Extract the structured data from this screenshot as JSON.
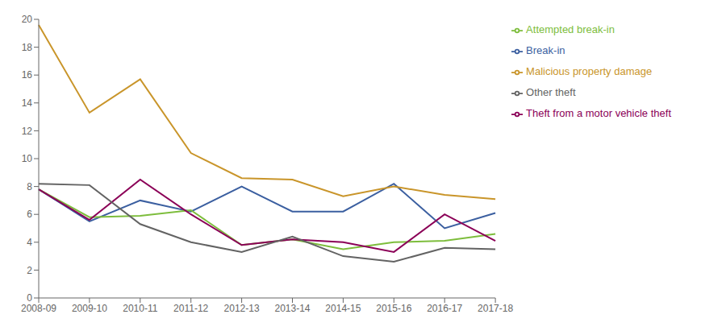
{
  "chart_data": {
    "type": "line",
    "categories": [
      "2008-09",
      "2009-10",
      "2010-11",
      "2011-12",
      "2012-13",
      "2013-14",
      "2014-15",
      "2015-16",
      "2016-17",
      "2017-18"
    ],
    "series": [
      {
        "name": "Break-in",
        "color": "#3B5FA0",
        "values": [
          7.8,
          5.5,
          7.0,
          6.2,
          8.0,
          6.2,
          6.2,
          8.2,
          5.0,
          6.1
        ]
      },
      {
        "name": "Attempted break-in",
        "color": "#7DBD3C",
        "values": [
          7.8,
          5.8,
          5.9,
          6.3,
          3.8,
          4.2,
          3.5,
          4.0,
          4.1,
          4.6
        ]
      },
      {
        "name": "Theft from a motor vehicle theft",
        "color": "#8B0057",
        "values": [
          7.8,
          5.6,
          8.5,
          6.0,
          3.8,
          4.2,
          4.0,
          3.3,
          6.0,
          4.1
        ]
      },
      {
        "name": "Malicious property damage",
        "color": "#C9952A",
        "values": [
          19.6,
          13.3,
          15.7,
          10.4,
          8.6,
          8.5,
          7.3,
          8.0,
          7.4,
          7.1
        ]
      },
      {
        "name": "Other theft",
        "color": "#636363",
        "values": [
          8.2,
          8.1,
          5.3,
          4.0,
          3.3,
          4.4,
          3.0,
          2.6,
          3.6,
          3.5
        ]
      }
    ],
    "ylim": [
      0,
      20
    ],
    "yticks": [
      0,
      2,
      4,
      6,
      8,
      10,
      12,
      14,
      16,
      18,
      20
    ],
    "grid": false,
    "legend": "right"
  }
}
